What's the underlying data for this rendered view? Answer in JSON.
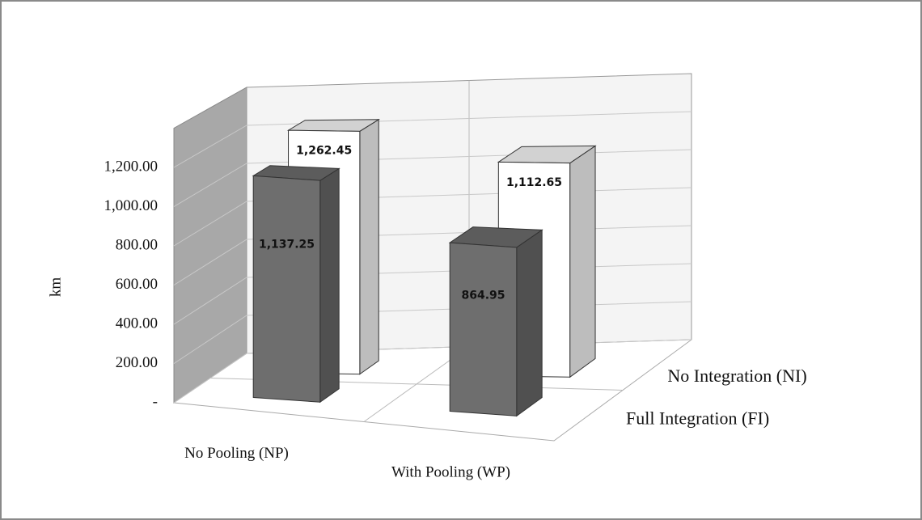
{
  "chart_data": {
    "type": "bar3d",
    "y_label": "km",
    "categories": [
      "No Pooling (NP)",
      "With Pooling (WP)"
    ],
    "series": [
      {
        "name": "Full Integration (FI)",
        "color": "#6e6e6e",
        "values": [
          1137.25,
          864.95
        ],
        "value_labels": [
          "1,137.25",
          "864.95"
        ]
      },
      {
        "name": "No Integration (NI)",
        "color": "#ffffff",
        "values": [
          1262.45,
          1112.65
        ],
        "value_labels": [
          "1,262.45",
          "1,112.65"
        ]
      }
    ],
    "ylim": [
      0,
      1400
    ],
    "yticks": [
      {
        "value": 0,
        "label": "-"
      },
      {
        "value": 200,
        "label": "200.00"
      },
      {
        "value": 400,
        "label": "400.00"
      },
      {
        "value": 600,
        "label": "600.00"
      },
      {
        "value": 800,
        "label": "800.00"
      },
      {
        "value": 1000,
        "label": "1,000.00"
      },
      {
        "value": 1200,
        "label": "1,200.00"
      }
    ],
    "grid": true
  }
}
